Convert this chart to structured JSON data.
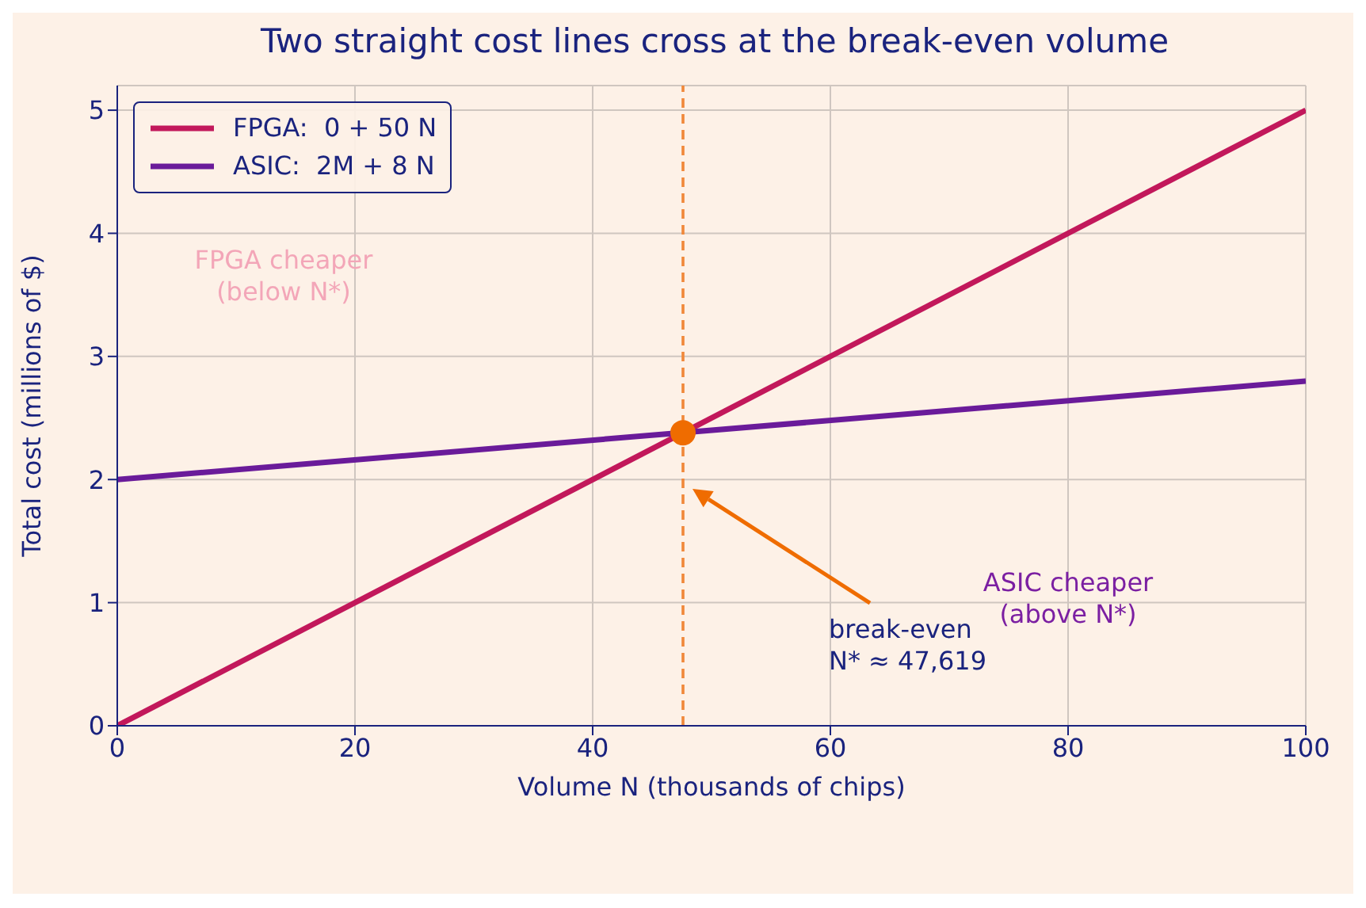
{
  "chart_data": {
    "type": "line",
    "title": "Two straight cost lines cross at the break-even volume",
    "xlabel": "Volume  N  (thousands of chips)",
    "ylabel": "Total cost  (millions of $)",
    "xlim": [
      0,
      100
    ],
    "xticks": [
      0,
      20,
      40,
      60,
      80,
      100
    ],
    "ylim": [
      0,
      5.2
    ],
    "yticks": [
      0,
      1,
      2,
      3,
      4,
      5
    ],
    "grid": true,
    "legend": "top left",
    "series": [
      {
        "name": "FPGA:  0 + 50 N",
        "color": "#c2185b",
        "x": [
          0,
          100
        ],
        "values": [
          0,
          5
        ]
      },
      {
        "name": "ASIC:  2M + 8 N",
        "color": "#6a1b9a",
        "x": [
          0,
          100
        ],
        "values": [
          2,
          2.8
        ]
      },
      {
        "type": "scatter",
        "color": "#ef6c00",
        "x": [
          47.6
        ],
        "values": [
          2.38
        ]
      }
    ],
    "ref_lines": [
      {
        "axis": "x",
        "value": 47.6,
        "color": "#f0883a",
        "line_style": "dashed"
      }
    ],
    "annotations": [
      "FPGA cheaper\n(below N*)",
      "break-even\nN* ≈ 47,619",
      "ASIC cheaper\n(above N*)"
    ]
  }
}
